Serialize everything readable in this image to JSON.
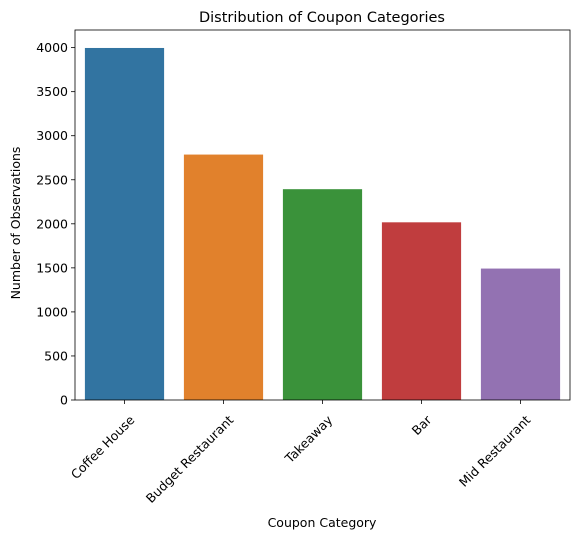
{
  "chart_data": {
    "type": "bar",
    "title": "Distribution of Coupon Categories",
    "xlabel": "Coupon Category",
    "ylabel": "Number of Observations",
    "categories": [
      "Coffee House",
      "Budget Restaurant",
      "Takeaway",
      "Bar",
      "Mid Restaurant"
    ],
    "values": [
      3996,
      2786,
      2393,
      2017,
      1492
    ],
    "colors": [
      "#3274a1",
      "#e1812c",
      "#3a923a",
      "#c03d3e",
      "#9372b2"
    ],
    "ylim": [
      0,
      4200
    ],
    "yticks": [
      0,
      500,
      1000,
      1500,
      2000,
      2500,
      3000,
      3500,
      4000
    ],
    "xtick_rotation": 45,
    "grid": false,
    "legend": "none"
  }
}
